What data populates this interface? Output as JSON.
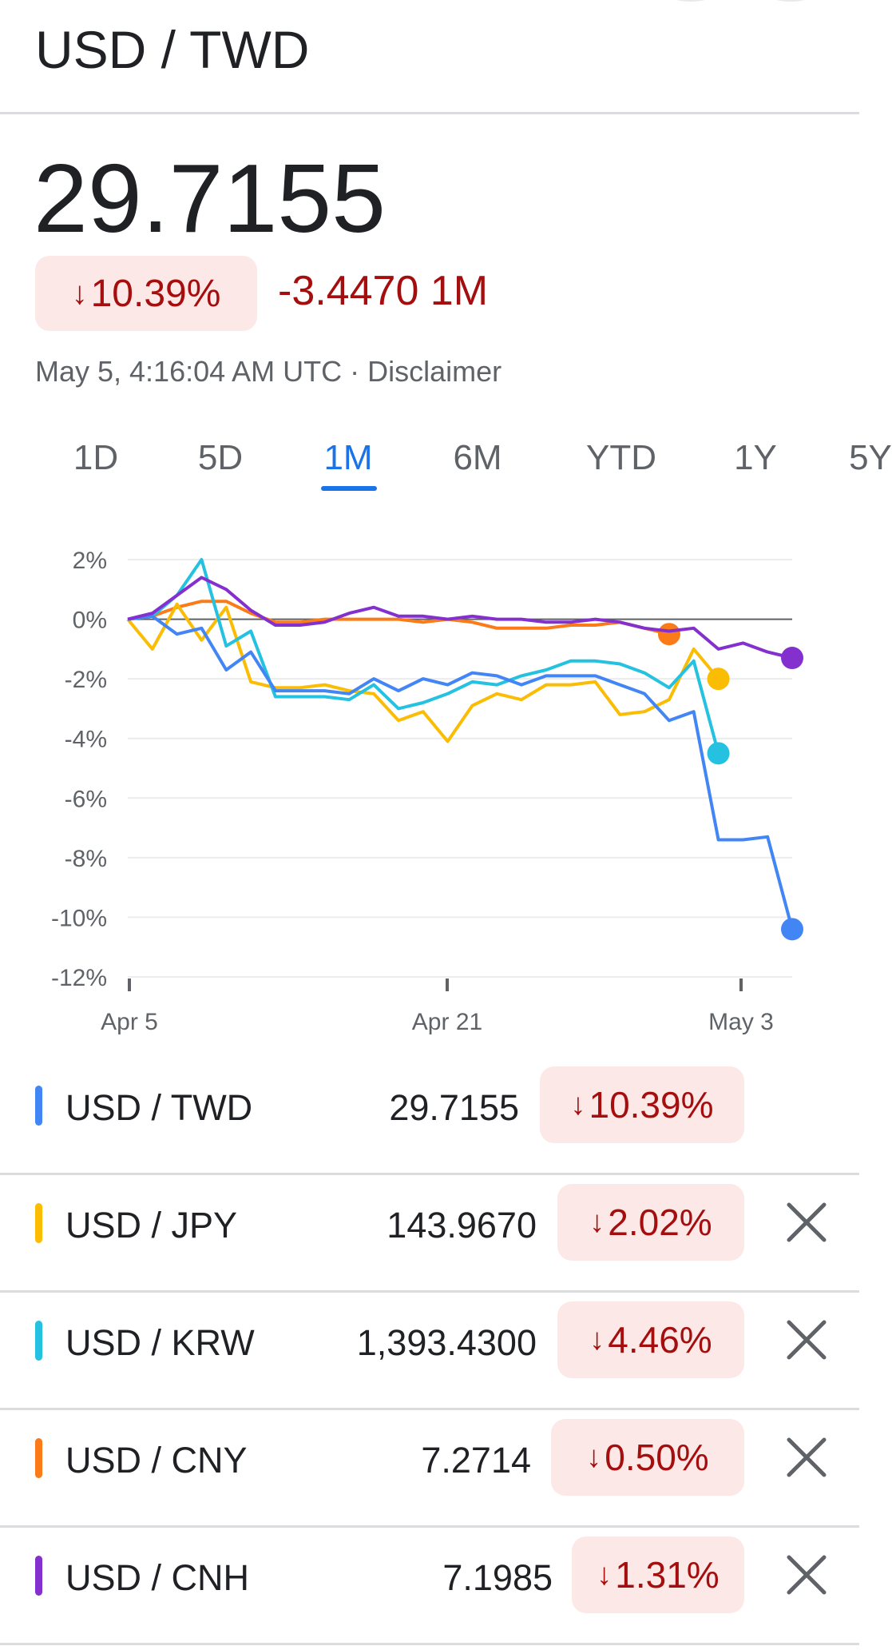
{
  "header": {
    "title": "USD / TWD"
  },
  "quote": {
    "price": "29.7155",
    "badge_arrow": "↓",
    "badge_pct": "10.39%",
    "change": "-3.4470 1M",
    "timestamp": "May 5, 4:16:04 AM UTC · Disclaimer"
  },
  "tabs": [
    {
      "label": "1D",
      "active": false
    },
    {
      "label": "5D",
      "active": false
    },
    {
      "label": "1M",
      "active": true
    },
    {
      "label": "6M",
      "active": false
    },
    {
      "label": "YTD",
      "active": false
    },
    {
      "label": "1Y",
      "active": false
    },
    {
      "label": "5Y",
      "active": false
    }
  ],
  "chart_data": {
    "type": "line",
    "x_ticks": [
      "Apr 5",
      "Apr 21",
      "May 3"
    ],
    "y_ticks": [
      "2%",
      "0%",
      "-2%",
      "-4%",
      "-6%",
      "-8%",
      "-10%",
      "-12%"
    ],
    "ylim": [
      -12,
      2
    ],
    "series": [
      {
        "name": "USD / TWD",
        "color": "#4285f4",
        "values": [
          0,
          0.1,
          -0.5,
          -0.3,
          -1.7,
          -1.1,
          -2.4,
          -2.4,
          -2.4,
          -2.5,
          -2,
          -2.4,
          -2,
          -2.2,
          -1.8,
          -1.9,
          -2.2,
          -1.9,
          -1.9,
          -1.9,
          -2.2,
          -2.5,
          -3.4,
          -3.1,
          -7.4,
          -7.4,
          -7.3,
          -10.4
        ]
      },
      {
        "name": "USD / JPY",
        "color": "#fbbc04",
        "values": [
          0,
          -1,
          0.5,
          -0.7,
          0.4,
          -2.1,
          -2.3,
          -2.3,
          -2.2,
          -2.4,
          -2.5,
          -3.4,
          -3.1,
          -4.1,
          -2.9,
          -2.5,
          -2.7,
          -2.2,
          -2.2,
          -2.1,
          -3.2,
          -3.1,
          -2.7,
          -1,
          -2.0
        ]
      },
      {
        "name": "USD / KRW",
        "color": "#24c1e0",
        "values": [
          0,
          0.1,
          0.8,
          2,
          -0.9,
          -0.4,
          -2.6,
          -2.6,
          -2.6,
          -2.7,
          -2.2,
          -3,
          -2.8,
          -2.5,
          -2.1,
          -2.2,
          -1.9,
          -1.7,
          -1.4,
          -1.4,
          -1.5,
          -1.8,
          -2.3,
          -1.4,
          -4.5
        ]
      },
      {
        "name": "USD / CNY",
        "color": "#fa7b17",
        "values": [
          0,
          0.1,
          0.4,
          0.6,
          0.6,
          0.2,
          -0.1,
          -0.1,
          0,
          0,
          0,
          0,
          -0.1,
          0,
          -0.1,
          -0.3,
          -0.3,
          -0.3,
          -0.2,
          -0.2,
          -0.1,
          -0.3,
          -0.5
        ]
      },
      {
        "name": "USD / CNH",
        "color": "#8430ce",
        "values": [
          0,
          0.2,
          0.8,
          1.4,
          1,
          0.3,
          -0.2,
          -0.2,
          -0.1,
          0.2,
          0.4,
          0.1,
          0.1,
          0,
          0.1,
          0,
          0,
          -0.1,
          -0.1,
          0,
          -0.1,
          -0.3,
          -0.4,
          -0.3,
          -1,
          -0.8,
          -1.1,
          -1.3
        ]
      }
    ]
  },
  "legend": [
    {
      "name": "USD / TWD",
      "value": "29.7155",
      "arrow": "↓",
      "pct": "10.39%",
      "color": "#4285f4",
      "closable": false
    },
    {
      "name": "USD / JPY",
      "value": "143.9670",
      "arrow": "↓",
      "pct": "2.02%",
      "color": "#fbbc04",
      "closable": true
    },
    {
      "name": "USD / KRW",
      "value": "1,393.4300",
      "arrow": "↓",
      "pct": "4.46%",
      "color": "#24c1e0",
      "closable": true
    },
    {
      "name": "USD / CNY",
      "value": "7.2714",
      "arrow": "↓",
      "pct": "0.50%",
      "color": "#fa7b17",
      "closable": true
    },
    {
      "name": "USD / CNH",
      "value": "7.1985",
      "arrow": "↓",
      "pct": "1.31%",
      "color": "#8430ce",
      "closable": true
    }
  ]
}
